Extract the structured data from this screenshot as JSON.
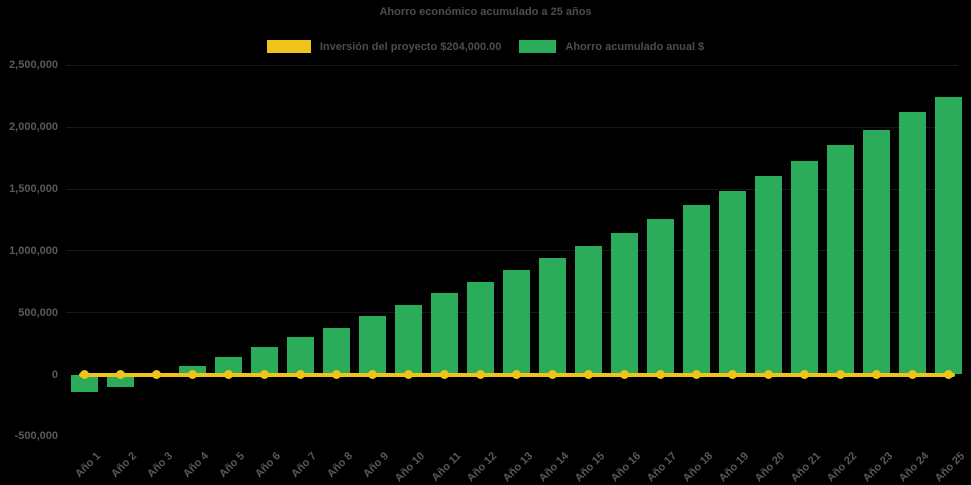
{
  "background": "#000000",
  "title": {
    "text": "Ahorro económico acumulado a 25 años",
    "color": "#4D4D4D"
  },
  "legend": {
    "position": "top",
    "text_color": "#4D4D4D",
    "items": [
      {
        "label": "Inversión del proyecto $204,000.00",
        "swatch_color": "#EFC319",
        "marker": "line"
      },
      {
        "label": "Ahorro acumulado anual $",
        "swatch_color": "#2BAC5B",
        "marker": "bar"
      }
    ]
  },
  "chart_data": {
    "type": "bar",
    "title": "Ahorro económico acumulado a 25 años",
    "xlabel": "",
    "ylabel": "",
    "categories": [
      "Año 1",
      "Año 2",
      "Año 3",
      "Año 4",
      "Año 5",
      "Año 6",
      "Año 7",
      "Año 8",
      "Año 9",
      "Año 10",
      "Año 11",
      "Año 12",
      "Año 13",
      "Año 14",
      "Año 15",
      "Año 16",
      "Año 17",
      "Año 18",
      "Año 19",
      "Año 20",
      "Año 21",
      "Año 22",
      "Año 23",
      "Año 24",
      "Año 25"
    ],
    "series": [
      {
        "name": "Inversión del proyecto $204,000.00",
        "type": "line",
        "color": "#EFC319",
        "marker": "circle",
        "values": [
          0,
          0,
          0,
          0,
          0,
          0,
          0,
          0,
          0,
          0,
          0,
          0,
          0,
          0,
          0,
          0,
          0,
          0,
          0,
          0,
          0,
          0,
          0,
          0,
          0
        ]
      },
      {
        "name": "Ahorro acumulado anual $",
        "type": "bar",
        "color": "#2BAC5B",
        "values": [
          -140000,
          -100000,
          -20000,
          65000,
          143000,
          220000,
          300000,
          380000,
          472000,
          560000,
          655000,
          748000,
          843000,
          945000,
          1040000,
          1145000,
          1255000,
          1367000,
          1483000,
          1605000,
          1727000,
          1853000,
          1980000,
          2120000,
          2245000
        ]
      }
    ],
    "ylim": [
      -500000,
      2500000
    ],
    "ytick_interval": 500000,
    "yticks": [
      2500000,
      2000000,
      1500000,
      1000000,
      500000,
      0,
      -500000
    ],
    "ytick_labels": [
      "2,500,000",
      "2,000,000",
      "1,500,000",
      "1,000,000",
      "500,000",
      "0",
      "-500,000"
    ],
    "grid": "off",
    "legend_position": "top",
    "axis_text_color": "#595959",
    "background_color": "#000000"
  }
}
